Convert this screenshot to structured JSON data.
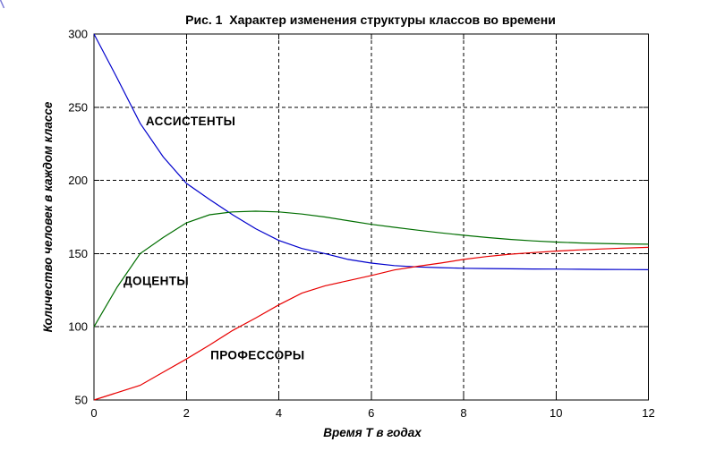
{
  "figure": {
    "background": "#ffffff",
    "frame_color": "#000000",
    "grid_color": "#000000"
  },
  "chart_data": {
    "type": "line",
    "title": "Рис. 1  Характер изменения структуры классов во времени",
    "xlabel": "Время Т в годах",
    "ylabel": "Количество человек в каждом классе",
    "xlim": [
      0,
      12
    ],
    "ylim": [
      50,
      300
    ],
    "xticks": [
      0,
      2,
      4,
      6,
      8,
      10,
      12
    ],
    "yticks": [
      50,
      100,
      150,
      200,
      250,
      300
    ],
    "grid": true,
    "grid_style": "dashed",
    "legend_position": "inline-annotations",
    "x": [
      0,
      0.5,
      1,
      1.5,
      2,
      2.5,
      3,
      3.5,
      4,
      4.5,
      5,
      5.5,
      6,
      6.5,
      7,
      7.5,
      8,
      8.5,
      9,
      9.5,
      10,
      10.5,
      11,
      11.5,
      12
    ],
    "series": [
      {
        "name": "АССИСТЕНТЫ",
        "color": "#0000cc",
        "values": [
          300,
          270,
          239,
          216,
          198,
          187,
          176.5,
          167,
          159,
          153.5,
          150,
          146,
          143.5,
          141.8,
          140.9,
          140.4,
          140,
          139.8,
          139.6,
          139.5,
          139.4,
          139.3,
          139.2,
          139.1,
          139
        ]
      },
      {
        "name": "ДОЦЕНТЫ",
        "color": "#006e00",
        "values": [
          100,
          127,
          150,
          161,
          171,
          176.5,
          178.5,
          179,
          178.5,
          177,
          175,
          172.5,
          170,
          168,
          166,
          164.2,
          162.5,
          161,
          159.7,
          158.7,
          157.9,
          157.3,
          156.9,
          156.6,
          156.4
        ]
      },
      {
        "name": "ПРОФЕССОРЫ",
        "color": "#e80000",
        "values": [
          50,
          55,
          60,
          69,
          78,
          87.5,
          97.5,
          106,
          115,
          123,
          128,
          131.5,
          135,
          138.8,
          141.3,
          143.5,
          146,
          148,
          149.6,
          150.7,
          151.7,
          152.5,
          153.2,
          153.8,
          154.3
        ]
      }
    ],
    "annotations": [
      {
        "text": "АССИСТЕНТЫ",
        "x": 1.12,
        "y": 237.7,
        "series": "АССИСТЕНТЫ"
      },
      {
        "text": "ДОЦЕНТЫ",
        "x": 0.64,
        "y": 128.5,
        "series": "ДОЦЕНТЫ"
      },
      {
        "text": "ПРОФЕССОРЫ",
        "x": 2.52,
        "y": 77.8,
        "series": "ПРОФЕССОРЫ"
      }
    ]
  }
}
